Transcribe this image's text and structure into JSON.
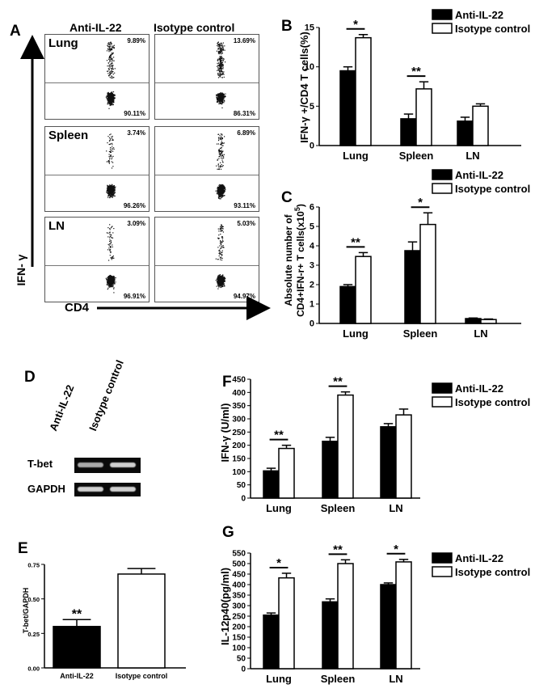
{
  "panelA": {
    "letter": "A",
    "col_headers": [
      "Anti-IL-22",
      "Isotype control"
    ],
    "y_axis": "IFN- γ",
    "x_axis": "CD4",
    "rows": [
      {
        "tissue": "Lung",
        "anti": {
          "upper": "9.89%",
          "lower": "90.11%"
        },
        "iso": {
          "upper": "13.69%",
          "lower": "86.31%"
        }
      },
      {
        "tissue": "Spleen",
        "anti": {
          "upper": "3.74%",
          "lower": "96.26%"
        },
        "iso": {
          "upper": "6.89%",
          "lower": "93.11%"
        }
      },
      {
        "tissue": "LN",
        "anti": {
          "upper": "3.09%",
          "lower": "96.91%"
        },
        "iso": {
          "upper": "5.03%",
          "lower": "94.97%"
        }
      }
    ]
  },
  "panelD": {
    "letter": "D",
    "lanes": [
      "Anti-IL-22",
      "Isotype control"
    ],
    "rows": [
      "T-bet",
      "GAPDH"
    ]
  },
  "legend": {
    "anti": "Anti-IL-22",
    "iso": "Isotype control"
  },
  "colors": {
    "anti": "#000000",
    "iso": "#ffffff"
  },
  "chart_data": [
    {
      "id": "B",
      "letter": "B",
      "type": "bar",
      "categories": [
        "Lung",
        "Spleen",
        "LN"
      ],
      "series": [
        {
          "name": "Anti-IL-22",
          "values": [
            9.5,
            3.4,
            3.1
          ],
          "errors": [
            0.5,
            0.6,
            0.5
          ]
        },
        {
          "name": "Isotype control",
          "values": [
            13.7,
            7.2,
            5.0
          ],
          "errors": [
            0.4,
            0.9,
            0.3
          ]
        }
      ],
      "ylabel": "IFN-γ +/CD4 T cells(%)",
      "ylim": [
        0,
        15
      ],
      "ticks": [
        0,
        5,
        10,
        15
      ],
      "sig": [
        {
          "cat": 0,
          "label": "*"
        },
        {
          "cat": 1,
          "label": "**"
        }
      ]
    },
    {
      "id": "C",
      "letter": "C",
      "type": "bar",
      "categories": [
        "Lung",
        "Spleen",
        "LN"
      ],
      "series": [
        {
          "name": "Anti-IL-22",
          "values": [
            1.9,
            3.75,
            0.25
          ],
          "errors": [
            0.1,
            0.45,
            0.03
          ]
        },
        {
          "name": "Isotype control",
          "values": [
            3.45,
            5.1,
            0.2
          ],
          "errors": [
            0.2,
            0.6,
            0.03
          ]
        }
      ],
      "ylabel_line1": "Absolute number of",
      "ylabel_line2": "CD4+IFN-r+ T cells(x10",
      "ylabel_sup": "5",
      "ylabel_end": ")",
      "ylim": [
        0,
        6
      ],
      "ticks": [
        0,
        1,
        2,
        3,
        4,
        5,
        6
      ],
      "sig": [
        {
          "cat": 0,
          "label": "**"
        },
        {
          "cat": 1,
          "label": "*"
        }
      ]
    },
    {
      "id": "E",
      "letter": "E",
      "type": "bar",
      "categories": [
        "Anti-IL-22",
        "Isotype control"
      ],
      "values": [
        0.3,
        0.68
      ],
      "errors": [
        0.05,
        0.04
      ],
      "ylabel": "T-bet/GAPDH",
      "ylim": [
        0,
        0.75
      ],
      "ticks": [
        0,
        0.25,
        0.5,
        0.75
      ],
      "tick_labels": [
        "0.00",
        "0.25",
        "0.50",
        "0.75"
      ],
      "sig": [
        {
          "idx": 0,
          "label": "**"
        }
      ]
    },
    {
      "id": "F",
      "letter": "F",
      "type": "bar",
      "categories": [
        "Lung",
        "Spleen",
        "LN"
      ],
      "series": [
        {
          "name": "Anti-IL-22",
          "values": [
            103,
            215,
            270
          ],
          "errors": [
            10,
            15,
            12
          ]
        },
        {
          "name": "Isotype control",
          "values": [
            188,
            390,
            315
          ],
          "errors": [
            12,
            12,
            22
          ]
        }
      ],
      "ylabel": "IFN-γ (U/ml)",
      "ylim": [
        0,
        450
      ],
      "ticks": [
        0,
        50,
        100,
        150,
        200,
        250,
        300,
        350,
        400,
        450
      ],
      "sig": [
        {
          "cat": 0,
          "label": "**"
        },
        {
          "cat": 1,
          "label": "**"
        }
      ]
    },
    {
      "id": "G",
      "letter": "G",
      "type": "bar",
      "categories": [
        "Lung",
        "Spleen",
        "LN"
      ],
      "series": [
        {
          "name": "Anti-IL-22",
          "values": [
            255,
            318,
            400
          ],
          "errors": [
            10,
            14,
            8
          ]
        },
        {
          "name": "Isotype control",
          "values": [
            432,
            500,
            508
          ],
          "errors": [
            22,
            18,
            12
          ]
        }
      ],
      "ylabel": "IL-12p40(pg/ml)",
      "ylim": [
        0,
        550
      ],
      "ticks": [
        0,
        50,
        100,
        150,
        200,
        250,
        300,
        350,
        400,
        450,
        500,
        550
      ],
      "sig": [
        {
          "cat": 0,
          "label": "*"
        },
        {
          "cat": 1,
          "label": "**"
        },
        {
          "cat": 2,
          "label": "*"
        }
      ]
    }
  ]
}
